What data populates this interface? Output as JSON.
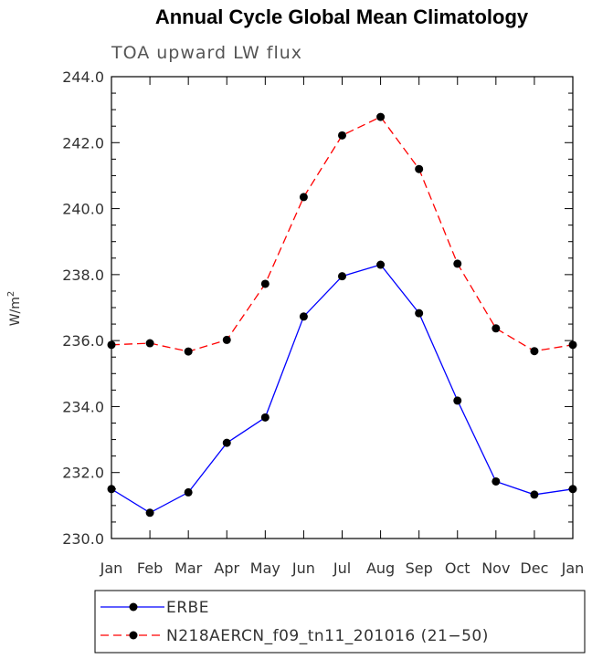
{
  "chart_data": {
    "type": "line",
    "title": "Annual Cycle Global Mean Climatology",
    "subtitle": "TOA upward LW flux",
    "xlabel": "",
    "ylabel": "W/m",
    "ylabel_superscript": "2",
    "categories": [
      "Jan",
      "Feb",
      "Mar",
      "Apr",
      "May",
      "Jun",
      "Jul",
      "Aug",
      "Sep",
      "Oct",
      "Nov",
      "Dec",
      "Jan"
    ],
    "ylim": [
      230.0,
      244.0
    ],
    "yticks": [
      "230.0",
      "232.0",
      "234.0",
      "236.0",
      "238.0",
      "240.0",
      "242.0",
      "244.0"
    ],
    "grid": false,
    "legend_position": "bottom",
    "series": [
      {
        "name": "ERBE",
        "color": "#0000ff",
        "line_style": "solid",
        "marker": "filled-circle",
        "values": [
          231.5,
          230.78,
          231.4,
          232.9,
          233.67,
          236.73,
          237.95,
          238.3,
          236.83,
          234.18,
          231.73,
          231.33,
          231.5
        ]
      },
      {
        "name": "N218AERCN_f09_tn11_201016 (21−50)",
        "color": "#ff0000",
        "line_style": "dashed",
        "marker": "filled-circle",
        "values": [
          235.87,
          235.92,
          235.67,
          236.02,
          237.72,
          240.35,
          242.22,
          242.78,
          241.2,
          238.33,
          236.37,
          235.68,
          235.87
        ]
      }
    ]
  }
}
